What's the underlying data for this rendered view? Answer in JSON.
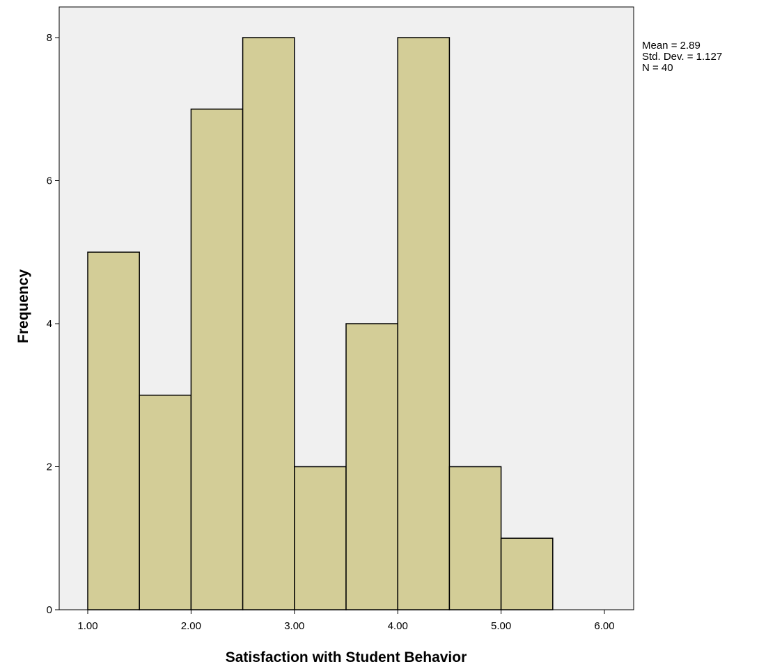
{
  "chart_data": {
    "type": "histogram",
    "xlabel": "Satisfaction with Student Behavior",
    "ylabel": "Frequency",
    "bins": [
      {
        "start": 1.0,
        "end": 1.5,
        "count": 5
      },
      {
        "start": 1.5,
        "end": 2.0,
        "count": 3
      },
      {
        "start": 2.0,
        "end": 2.5,
        "count": 7
      },
      {
        "start": 2.5,
        "end": 3.0,
        "count": 8
      },
      {
        "start": 3.0,
        "end": 3.5,
        "count": 2
      },
      {
        "start": 3.5,
        "end": 4.0,
        "count": 4
      },
      {
        "start": 4.0,
        "end": 4.5,
        "count": 8
      },
      {
        "start": 4.5,
        "end": 5.0,
        "count": 2
      },
      {
        "start": 5.0,
        "end": 5.5,
        "count": 1
      }
    ],
    "xticks": [
      "1.00",
      "2.00",
      "3.00",
      "4.00",
      "5.00",
      "6.00"
    ],
    "xtick_values": [
      1,
      2,
      3,
      4,
      5,
      6
    ],
    "yticks": [
      "0",
      "2",
      "4",
      "6",
      "8"
    ],
    "ytick_values": [
      0,
      2,
      4,
      6,
      8
    ],
    "stats": {
      "mean": "Mean = 2.89",
      "std_dev": "Std. Dev. = 1.127",
      "n": "N = 40"
    },
    "colors": {
      "bar_fill": "#d3cd97",
      "bar_stroke": "#000000",
      "plot_background": "#f0f0f0"
    },
    "grid": false
  }
}
